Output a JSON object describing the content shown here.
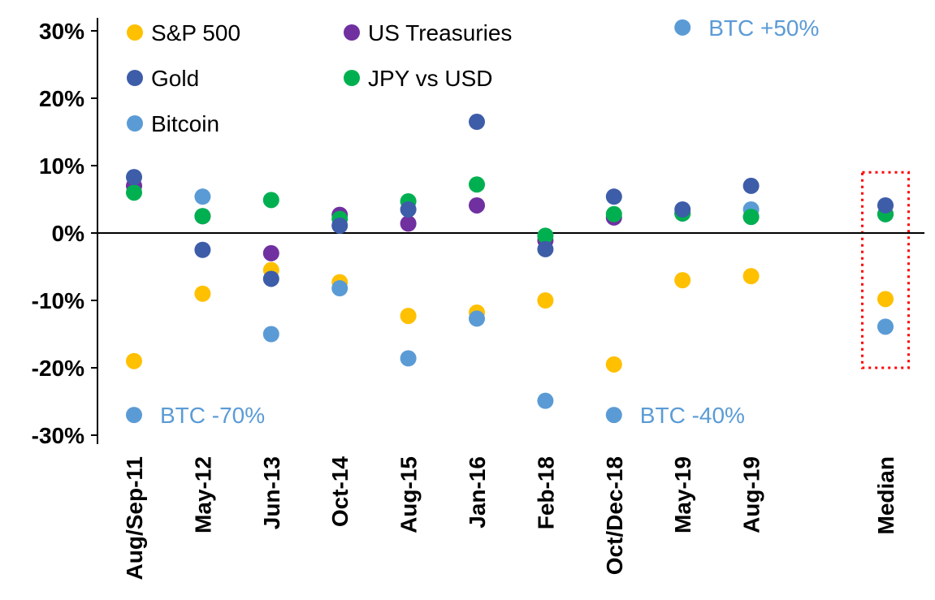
{
  "chart_data": {
    "type": "scatter",
    "title": "",
    "xlabel": "",
    "ylabel": "",
    "ylim": [
      -30,
      30
    ],
    "ytick_values": [
      30,
      20,
      10,
      0,
      -10,
      -20,
      -30
    ],
    "ytick_labels": [
      "30%",
      "20%",
      "10%",
      "0%",
      "-10%",
      "-20%",
      "-30%"
    ],
    "grid": false,
    "legend_position": "top-left-two-columns",
    "categories": [
      "Aug/Sep-11",
      "May-12",
      "Jun-13",
      "Oct-14",
      "Aug-15",
      "Jan-16",
      "Feb-18",
      "Oct/Dec-18",
      "May-19",
      "Aug-19",
      "Median"
    ],
    "series": [
      {
        "name": "S&P 500",
        "color": "#FFC000",
        "values": [
          -19,
          -9,
          -5.5,
          -7.3,
          -12.3,
          -11.8,
          -10,
          -19.5,
          -7,
          -6.4,
          -9.8
        ]
      },
      {
        "name": "Gold",
        "color": "#3D5DA9",
        "values": [
          8.3,
          -2.5,
          -6.8,
          1.1,
          3.5,
          16.5,
          -2.4,
          5.4,
          3.5,
          7,
          4.1
        ]
      },
      {
        "name": "Bitcoin",
        "color": "#5B9BD5",
        "values": [
          -27,
          5.4,
          -15,
          -8.2,
          -18.6,
          -12.7,
          -24.9,
          -27,
          30.5,
          3.5,
          -13.9
        ]
      },
      {
        "name": "US Treasuries",
        "color": "#7030A0",
        "values": [
          7,
          2.5,
          -3,
          2.7,
          1.4,
          4.1,
          -1.1,
          2.3,
          2.9,
          2.4,
          2.8
        ]
      },
      {
        "name": "JPY vs USD",
        "color": "#00B050",
        "values": [
          6,
          2.5,
          4.9,
          2.1,
          4.7,
          7.2,
          -0.4,
          2.8,
          2.9,
          2.4,
          2.8
        ]
      }
    ],
    "annotations": [
      {
        "text": "BTC +50%",
        "category": "May-19",
        "value": 30.5,
        "color": "#5B9BD5"
      },
      {
        "text": "BTC -70%",
        "category": "Aug/Sep-11",
        "value": -27,
        "color": "#5B9BD5"
      },
      {
        "text": "BTC -40%",
        "category": "Oct/Dec-18",
        "value": -27,
        "color": "#5B9BD5"
      }
    ],
    "highlight_box": {
      "category": "Median",
      "value_top": 9,
      "value_bottom": -20,
      "color": "#FF0000",
      "style": "dotted"
    }
  }
}
